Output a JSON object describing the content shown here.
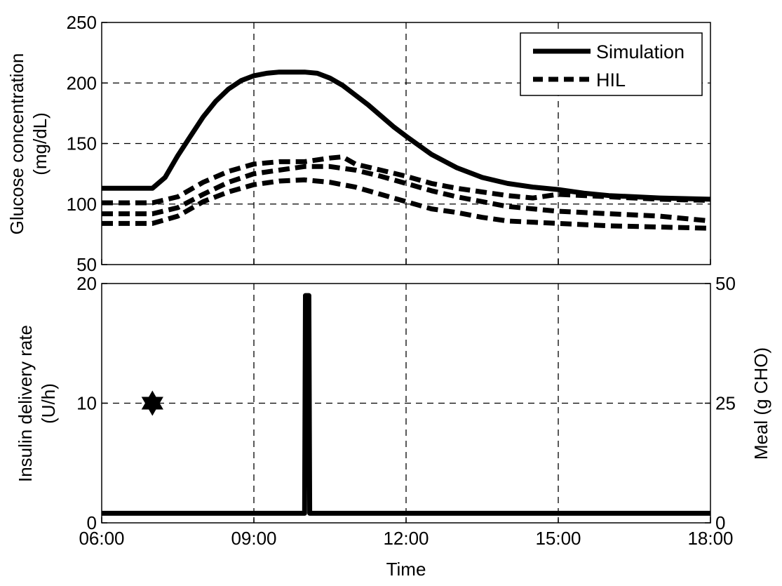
{
  "chart_data": [
    {
      "type": "line",
      "title": "",
      "xlabel": "",
      "ylabel": "Glucose concentration",
      "ylabel_unit": "(mg/dL)",
      "xlim": [
        "06:00",
        "18:00"
      ],
      "ylim": [
        50,
        250
      ],
      "yticks": [
        "50",
        "100",
        "150",
        "200",
        "250"
      ],
      "xticks": [
        "06:00",
        "09:00",
        "12:00",
        "15:00",
        "18:00"
      ],
      "grid": true,
      "legend": {
        "position": "top-right",
        "entries": [
          "Simulation",
          "HIL"
        ]
      },
      "series": [
        {
          "name": "Simulation",
          "style": "solid",
          "x": [
            "06:00",
            "07:00",
            "07:15",
            "07:30",
            "07:45",
            "08:00",
            "08:15",
            "08:30",
            "08:45",
            "09:00",
            "09:15",
            "09:30",
            "10:00",
            "10:15",
            "10:30",
            "10:45",
            "11:00",
            "11:15",
            "11:30",
            "11:45",
            "12:00",
            "12:30",
            "13:00",
            "13:30",
            "14:00",
            "14:30",
            "15:00",
            "15:30",
            "16:00",
            "16:30",
            "17:00",
            "18:00"
          ],
          "values": [
            113,
            113,
            122,
            140,
            156,
            172,
            185,
            195,
            202,
            206,
            208,
            209,
            209,
            208,
            204,
            198,
            190,
            182,
            173,
            164,
            156,
            141,
            130,
            122,
            117,
            114,
            112,
            109,
            107,
            106,
            105,
            104
          ]
        },
        {
          "name": "HIL",
          "style": "dashed",
          "x": [
            "06:00",
            "07:00",
            "07:30",
            "08:00",
            "08:30",
            "09:00",
            "09:30",
            "10:00",
            "10:30",
            "10:45",
            "11:00",
            "11:30",
            "12:00",
            "12:30",
            "13:00",
            "13:30",
            "14:00",
            "14:30",
            "15:00",
            "16:00",
            "17:00",
            "18:00"
          ],
          "values": [
            101,
            101,
            106,
            118,
            127,
            133,
            135,
            135,
            138,
            139,
            133,
            128,
            123,
            117,
            113,
            110,
            107,
            105,
            108,
            106,
            104,
            103
          ]
        },
        {
          "name": "",
          "style": "dashed",
          "x": [
            "06:00",
            "07:00",
            "07:30",
            "08:00",
            "08:30",
            "09:00",
            "09:30",
            "10:00",
            "10:30",
            "11:00",
            "11:30",
            "12:00",
            "12:30",
            "13:00",
            "13:30",
            "14:00",
            "14:30",
            "15:00",
            "15:30",
            "16:00",
            "16:30",
            "17:00",
            "18:00"
          ],
          "values": [
            92,
            92,
            97,
            108,
            118,
            125,
            128,
            131,
            131,
            128,
            123,
            117,
            111,
            106,
            102,
            98,
            96,
            94,
            93,
            92,
            91,
            90,
            86
          ]
        },
        {
          "name": "",
          "style": "dashed",
          "x": [
            "06:00",
            "07:00",
            "07:30",
            "08:00",
            "08:30",
            "09:00",
            "09:30",
            "10:00",
            "10:30",
            "11:00",
            "11:30",
            "12:00",
            "12:30",
            "13:00",
            "13:30",
            "14:00",
            "14:30",
            "15:00",
            "16:00",
            "17:00",
            "18:00"
          ],
          "values": [
            84,
            84,
            90,
            102,
            110,
            116,
            119,
            120,
            118,
            114,
            108,
            102,
            96,
            93,
            89,
            86,
            85,
            84,
            82,
            81,
            80
          ]
        }
      ]
    },
    {
      "type": "line",
      "title": "",
      "xlabel": "Time",
      "ylabel": "Insulin delivery rate",
      "ylabel_unit": "(U/h)",
      "ylabel_right": "Meal (g CHO)",
      "xlim": [
        "06:00",
        "18:00"
      ],
      "ylim": [
        0,
        20
      ],
      "ylim_right": [
        0,
        50
      ],
      "yticks": [
        "0",
        "10",
        "20"
      ],
      "yticks_right": [
        "0",
        "25",
        "50"
      ],
      "xticks": [
        "06:00",
        "09:00",
        "12:00",
        "15:00",
        "18:00"
      ],
      "grid": true,
      "series": [
        {
          "name": "",
          "style": "solid",
          "x": [
            "06:00",
            "10:00",
            "10:01",
            "10:05",
            "10:06",
            "18:00"
          ],
          "values": [
            0.8,
            0.8,
            19,
            19,
            0.8,
            0.8
          ]
        }
      ],
      "meals": [
        {
          "x": "07:00",
          "value": 25,
          "marker": "hexagram"
        }
      ]
    }
  ]
}
